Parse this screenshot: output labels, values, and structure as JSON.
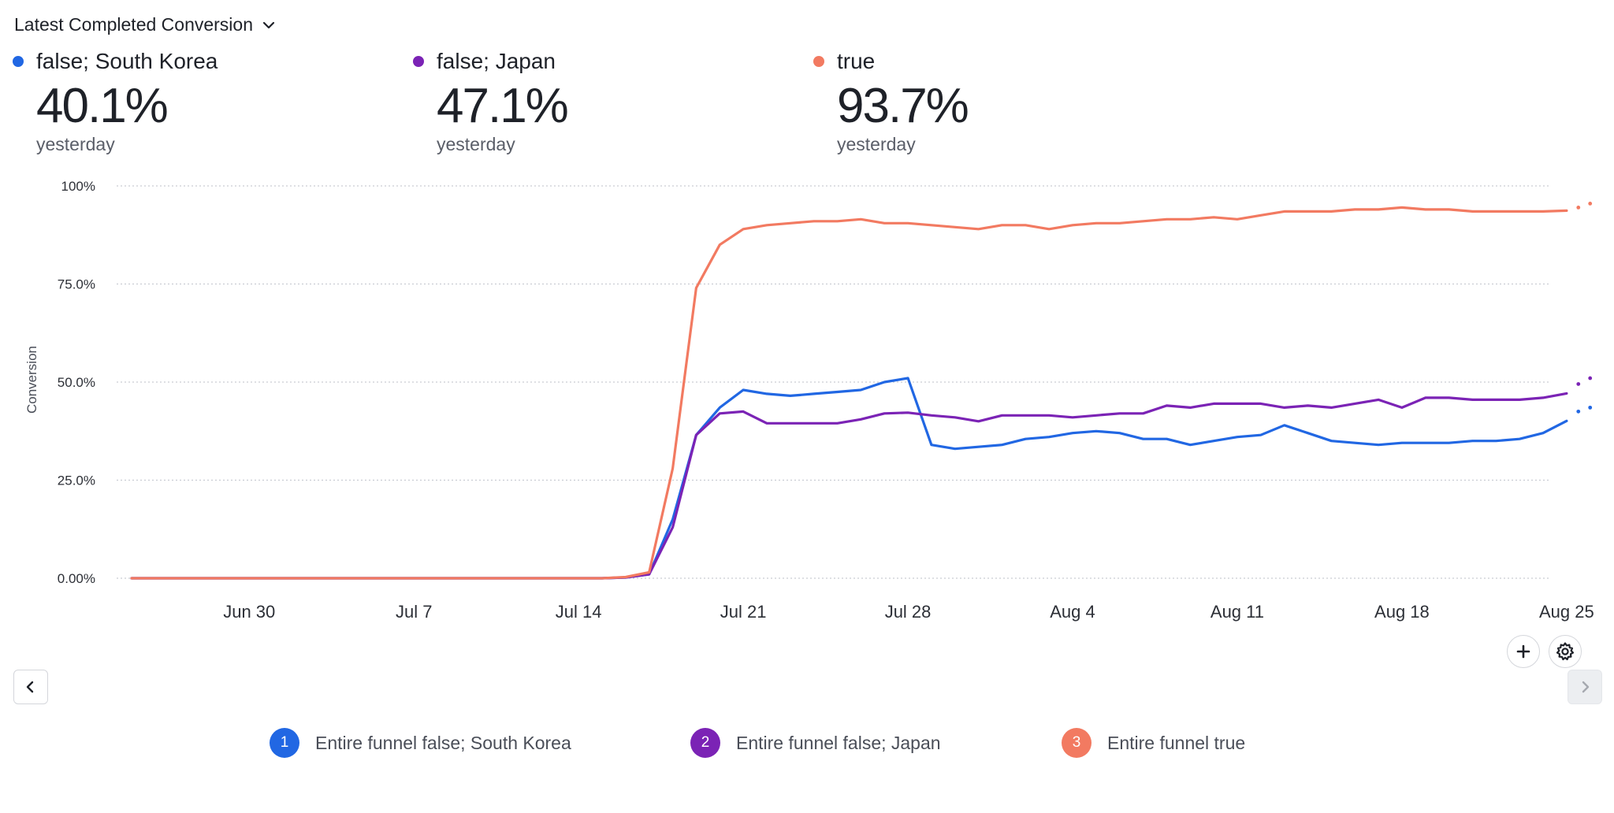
{
  "header": {
    "metric_label": "Latest Completed Conversion"
  },
  "summary": [
    {
      "name": "false; South Korea",
      "value": "40.1%",
      "period": "yesterday",
      "color": "#2167e3"
    },
    {
      "name": "false; Japan",
      "value": "47.1%",
      "period": "yesterday",
      "color": "#7b23b5"
    },
    {
      "name": "true",
      "value": "93.7%",
      "period": "yesterday",
      "color": "#f27a61"
    }
  ],
  "legend": [
    {
      "index": "1",
      "label": "Entire funnel false; South Korea",
      "color": "#2167e3"
    },
    {
      "index": "2",
      "label": "Entire funnel false; Japan",
      "color": "#7b23b5"
    },
    {
      "index": "3",
      "label": "Entire funnel true",
      "color": "#f27a61"
    }
  ],
  "chart_data": {
    "type": "line",
    "ylabel": "Conversion",
    "ylim": [
      0,
      100
    ],
    "y_ticks": [
      {
        "value": 100,
        "label": "100%"
      },
      {
        "value": 75,
        "label": "75.0%"
      },
      {
        "value": 50,
        "label": "50.0%"
      },
      {
        "value": 25,
        "label": "25.0%"
      },
      {
        "value": 0,
        "label": "0.00%"
      }
    ],
    "x_start": "Jun 25",
    "x_end": "Aug 25",
    "x_ticks": [
      {
        "day": 5,
        "label": "Jun 30"
      },
      {
        "day": 12,
        "label": "Jul 7"
      },
      {
        "day": 19,
        "label": "Jul 14"
      },
      {
        "day": 26,
        "label": "Jul 21"
      },
      {
        "day": 33,
        "label": "Jul 28"
      },
      {
        "day": 40,
        "label": "Aug 4"
      },
      {
        "day": 47,
        "label": "Aug 11"
      },
      {
        "day": 54,
        "label": "Aug 18"
      },
      {
        "day": 61,
        "label": "Aug 25"
      }
    ],
    "grid": true,
    "legend": "bottom",
    "series": [
      {
        "name": "false; South Korea",
        "color": "#2167e3",
        "values": [
          0,
          0,
          0,
          0,
          0,
          0,
          0,
          0,
          0,
          0,
          0,
          0,
          0,
          0,
          0,
          0,
          0,
          0,
          0,
          0,
          0,
          0.2,
          1,
          15,
          36.5,
          43.5,
          48,
          47,
          46.5,
          47,
          47.5,
          48,
          50,
          51,
          34,
          33,
          33.5,
          34,
          35.5,
          36,
          37,
          37.5,
          37,
          35.5,
          35.5,
          34,
          35,
          36,
          36.5,
          39,
          37,
          35,
          34.5,
          34,
          34.5,
          34.5,
          34.5,
          35,
          35,
          35.5,
          37,
          40.1
        ],
        "forecast": [
          42.5,
          43.5
        ]
      },
      {
        "name": "false; Japan",
        "color": "#7b23b5",
        "values": [
          0,
          0,
          0,
          0,
          0,
          0,
          0,
          0,
          0,
          0,
          0,
          0,
          0,
          0,
          0,
          0,
          0,
          0,
          0,
          0,
          0,
          0.2,
          1,
          13,
          36.5,
          42,
          42.5,
          39.5,
          39.5,
          39.5,
          39.5,
          40.5,
          42,
          42.2,
          41.5,
          41,
          40,
          41.5,
          41.5,
          41.5,
          41,
          41.5,
          42,
          42,
          44,
          43.5,
          44.5,
          44.5,
          44.5,
          43.5,
          44,
          43.5,
          44.5,
          45.5,
          43.5,
          46,
          46,
          45.5,
          45.5,
          45.5,
          46,
          47.1
        ],
        "forecast": [
          49.5,
          51
        ]
      },
      {
        "name": "true",
        "color": "#f27a61",
        "values": [
          0,
          0,
          0,
          0,
          0,
          0,
          0,
          0,
          0,
          0,
          0,
          0,
          0,
          0,
          0,
          0,
          0,
          0,
          0,
          0,
          0,
          0.3,
          1.5,
          28,
          74,
          85,
          89,
          90,
          90.5,
          91,
          91,
          91.5,
          90.5,
          90.5,
          90,
          89.5,
          89,
          90,
          90,
          89,
          90,
          90.5,
          90.5,
          91,
          91.5,
          91.5,
          92,
          91.5,
          92.5,
          93.5,
          93.5,
          93.5,
          94,
          94,
          94.5,
          94,
          94,
          93.5,
          93.5,
          93.5,
          93.5,
          93.7
        ],
        "forecast": [
          94.5,
          95.5
        ]
      }
    ]
  }
}
